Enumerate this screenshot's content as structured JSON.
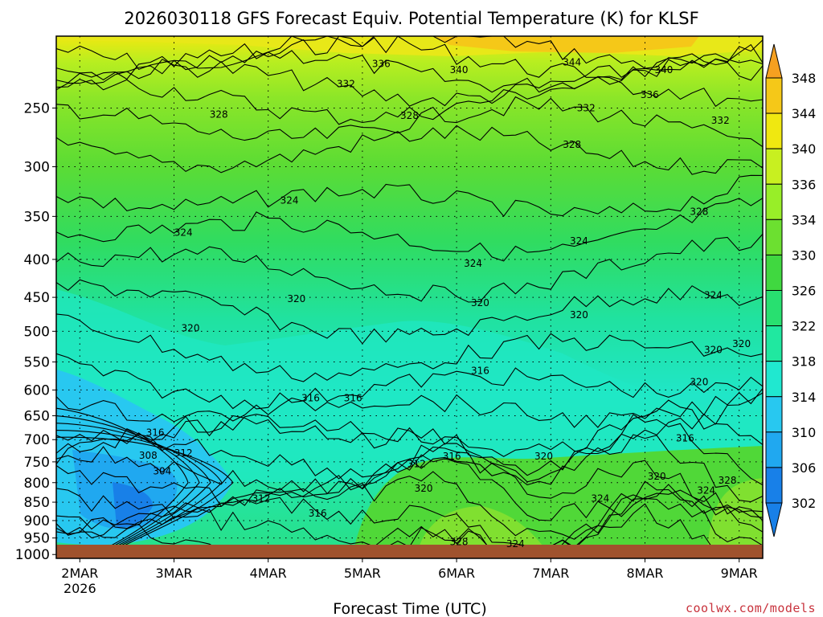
{
  "colors": {
    "ground": "#a0522d",
    "credit": "#c8323c",
    "contour": "#000000"
  },
  "chart_data": {
    "type": "heatmap",
    "title": "2026030118 GFS Forecast Equiv. Potential Temperature (K) for KLSF",
    "xlabel": "Forecast Time (UTC)",
    "credit": "coolwx.com/models",
    "x_ticks": [
      "2MAR",
      "3MAR",
      "4MAR",
      "5MAR",
      "6MAR",
      "7MAR",
      "8MAR",
      "9MAR"
    ],
    "x_year": "2026",
    "x_range": [
      "2026-03-01 18Z",
      "2026-03-09 06Z"
    ],
    "y_ticks": [
      "250",
      "300",
      "350",
      "400",
      "450",
      "500",
      "550",
      "600",
      "650",
      "700",
      "750",
      "800",
      "850",
      "900",
      "950",
      "1000"
    ],
    "y_range_hpa": [
      200,
      1012
    ],
    "colorbar": {
      "labels": [
        "348",
        "344",
        "340",
        "336",
        "334",
        "330",
        "326",
        "322",
        "318",
        "314",
        "310",
        "306",
        "302"
      ],
      "colors": [
        "#f5a020",
        "#f5c818",
        "#f0e810",
        "#c8f020",
        "#98ee28",
        "#6ce030",
        "#40d840",
        "#28e070",
        "#20e8a0",
        "#20e8d0",
        "#28c8f0",
        "#20a8f0",
        "#1880e8"
      ]
    },
    "contour_labels": [
      {
        "text": "336",
        "t": 0.46,
        "p": 218
      },
      {
        "text": "340",
        "t": 0.57,
        "p": 222
      },
      {
        "text": "344",
        "t": 0.73,
        "p": 217
      },
      {
        "text": "340",
        "t": 0.86,
        "p": 222
      },
      {
        "text": "332",
        "t": 0.41,
        "p": 232
      },
      {
        "text": "336",
        "t": 0.84,
        "p": 240
      },
      {
        "text": "328",
        "t": 0.23,
        "p": 255
      },
      {
        "text": "328",
        "t": 0.5,
        "p": 256
      },
      {
        "text": "332",
        "t": 0.75,
        "p": 250
      },
      {
        "text": "332",
        "t": 0.94,
        "p": 260
      },
      {
        "text": "328",
        "t": 0.73,
        "p": 280
      },
      {
        "text": "324",
        "t": 0.33,
        "p": 333
      },
      {
        "text": "328",
        "t": 0.91,
        "p": 345
      },
      {
        "text": "324",
        "t": 0.18,
        "p": 368
      },
      {
        "text": "324",
        "t": 0.74,
        "p": 378
      },
      {
        "text": "324",
        "t": 0.59,
        "p": 405
      },
      {
        "text": "324",
        "t": 0.93,
        "p": 447
      },
      {
        "text": "320",
        "t": 0.34,
        "p": 452
      },
      {
        "text": "320",
        "t": 0.6,
        "p": 458
      },
      {
        "text": "320",
        "t": 0.74,
        "p": 475
      },
      {
        "text": "320",
        "t": 0.19,
        "p": 495
      },
      {
        "text": "320",
        "t": 0.97,
        "p": 520
      },
      {
        "text": "320",
        "t": 0.93,
        "p": 530
      },
      {
        "text": "316",
        "t": 0.6,
        "p": 565
      },
      {
        "text": "320",
        "t": 0.91,
        "p": 585
      },
      {
        "text": "316",
        "t": 0.36,
        "p": 615
      },
      {
        "text": "316",
        "t": 0.42,
        "p": 615
      },
      {
        "text": "316",
        "t": 0.14,
        "p": 685
      },
      {
        "text": "316",
        "t": 0.89,
        "p": 697
      },
      {
        "text": "308",
        "t": 0.13,
        "p": 735
      },
      {
        "text": "312",
        "t": 0.18,
        "p": 730
      },
      {
        "text": "316",
        "t": 0.56,
        "p": 737
      },
      {
        "text": "320",
        "t": 0.69,
        "p": 737
      },
      {
        "text": "312",
        "t": 0.51,
        "p": 755
      },
      {
        "text": "304",
        "t": 0.15,
        "p": 772
      },
      {
        "text": "320",
        "t": 0.85,
        "p": 785
      },
      {
        "text": "328",
        "t": 0.95,
        "p": 795
      },
      {
        "text": "320",
        "t": 0.52,
        "p": 815
      },
      {
        "text": "324",
        "t": 0.92,
        "p": 820
      },
      {
        "text": "312",
        "t": 0.29,
        "p": 840
      },
      {
        "text": "324",
        "t": 0.77,
        "p": 840
      },
      {
        "text": "316",
        "t": 0.37,
        "p": 880
      },
      {
        "text": "328",
        "t": 0.57,
        "p": 962
      },
      {
        "text": "324",
        "t": 0.65,
        "p": 967
      }
    ]
  }
}
